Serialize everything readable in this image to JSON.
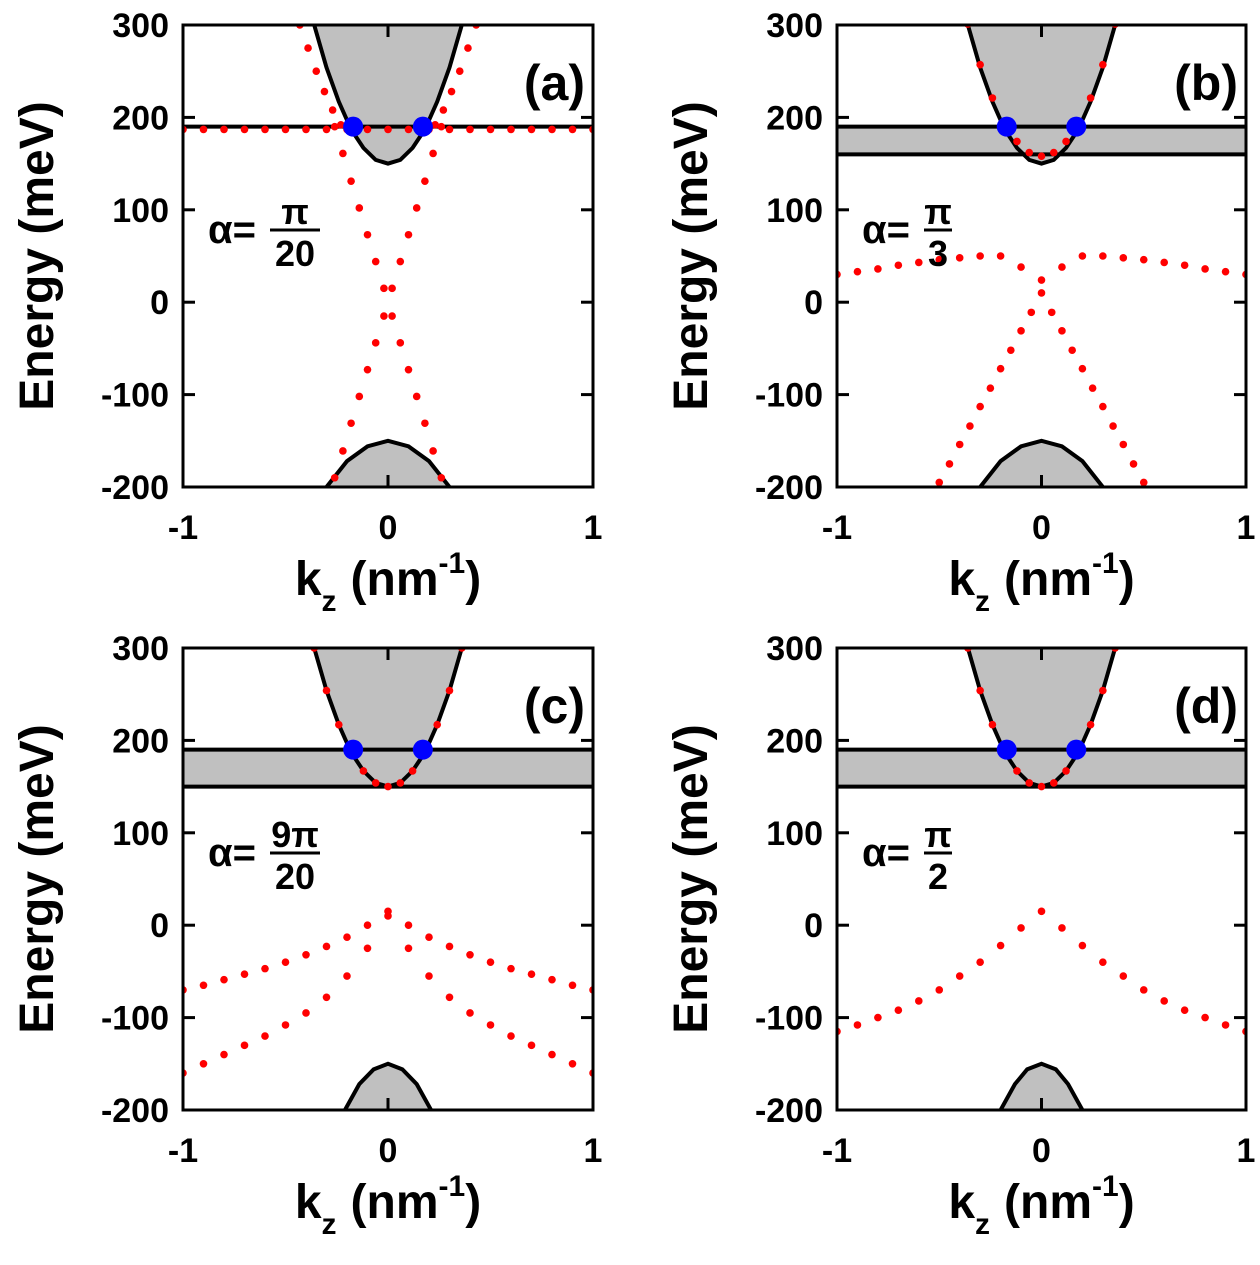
{
  "chart_data": [
    {
      "type": "line",
      "title": "(a)",
      "ylabel": "Energy (meV)",
      "xlabel": {
        "base": "k",
        "sub": "z",
        "unit": "(nm",
        "sup": "-1",
        "close": ")"
      },
      "annotation": {
        "prefix": "α=",
        "numerator": "π",
        "denominator": "20"
      },
      "xlim": [
        -1,
        1
      ],
      "ylim": [
        -200,
        300
      ],
      "xticks": [
        -1,
        0,
        1
      ],
      "yticks": [
        -200,
        -100,
        0,
        100,
        200,
        300
      ],
      "conduction_band": {
        "x": [
          -0.36,
          -0.3,
          -0.24,
          -0.18,
          -0.12,
          -0.06,
          0,
          0.06,
          0.12,
          0.18,
          0.24,
          0.3,
          0.36
        ],
        "values": [
          300,
          254,
          217,
          187,
          167,
          154,
          150,
          154,
          167,
          187,
          217,
          254,
          300
        ]
      },
      "valence_band": {
        "x": [
          -0.3,
          -0.2,
          -0.1,
          0,
          0.1,
          0.2,
          0.3
        ],
        "values": [
          -200,
          -172,
          -156,
          -150,
          -156,
          -172,
          -200
        ]
      },
      "lines": [
        190
      ],
      "crossings": {
        "color": "#0000ff",
        "x": [
          -0.17,
          0.17
        ],
        "values": [
          190,
          190
        ]
      },
      "series": [
        {
          "color": "#ff0000",
          "x": [
            -1,
            -0.9,
            -0.8,
            -0.7,
            -0.6,
            -0.5,
            -0.4,
            -0.3,
            -0.2,
            -0.1,
            0,
            0.1,
            0.2,
            0.3,
            0.4,
            0.5,
            0.6,
            0.7,
            0.8,
            0.9,
            1
          ],
          "values": [
            187,
            187,
            187,
            187,
            187,
            187,
            187,
            187,
            187,
            187,
            187,
            187,
            187,
            187,
            187,
            187,
            187,
            187,
            187,
            187,
            187
          ]
        },
        {
          "color": "#ff0000",
          "x": [
            -0.43,
            -0.39,
            -0.35,
            -0.31,
            -0.27,
            -0.23
          ],
          "values": [
            300,
            275,
            250,
            228,
            208,
            192
          ]
        },
        {
          "color": "#ff0000",
          "x": [
            0.23,
            0.27,
            0.31,
            0.35,
            0.39,
            0.43
          ],
          "values": [
            192,
            208,
            228,
            250,
            275,
            300
          ]
        },
        {
          "color": "#ff0000",
          "x": [
            -0.26,
            -0.22,
            -0.18,
            -0.14,
            -0.1,
            -0.06,
            -0.02,
            0.02,
            0.06,
            0.1,
            0.14,
            0.18,
            0.22,
            0.26
          ],
          "values": [
            190,
            161,
            131,
            102,
            73,
            44,
            15,
            -15,
            -44,
            -73,
            -102,
            -131,
            -161,
            -190
          ]
        },
        {
          "color": "#ff0000",
          "x": [
            -0.26,
            -0.22,
            -0.18,
            -0.14,
            -0.1,
            -0.06,
            -0.02,
            0.02,
            0.06,
            0.1,
            0.14,
            0.18,
            0.22,
            0.26
          ],
          "values": [
            -190,
            -161,
            -131,
            -102,
            -73,
            -44,
            -15,
            15,
            44,
            73,
            102,
            131,
            161,
            190
          ]
        }
      ]
    },
    {
      "type": "line",
      "title": "(b)",
      "ylabel": "Energy (meV)",
      "xlabel": {
        "base": "k",
        "sub": "z",
        "unit": "(nm",
        "sup": "-1",
        "close": ")"
      },
      "annotation": {
        "prefix": "α=",
        "numerator": "π",
        "denominator": "3"
      },
      "xlim": [
        -1,
        1
      ],
      "ylim": [
        -200,
        300
      ],
      "xticks": [
        -1,
        0,
        1
      ],
      "yticks": [
        -200,
        -100,
        0,
        100,
        200,
        300
      ],
      "conduction_band": {
        "x": [
          -0.36,
          -0.3,
          -0.24,
          -0.18,
          -0.12,
          -0.06,
          0,
          0.06,
          0.12,
          0.18,
          0.24,
          0.3,
          0.36
        ],
        "values": [
          300,
          254,
          217,
          187,
          167,
          154,
          150,
          154,
          167,
          187,
          217,
          254,
          300
        ]
      },
      "valence_band": {
        "x": [
          -0.3,
          -0.2,
          -0.1,
          0,
          0.1,
          0.2,
          0.3
        ],
        "values": [
          -200,
          -172,
          -156,
          -150,
          -156,
          -172,
          -200
        ]
      },
      "lines": [
        160,
        190
      ],
      "shaded_band": [
        160,
        190
      ],
      "crossings": {
        "color": "#0000ff",
        "x": [
          -0.17,
          0.17
        ],
        "values": [
          190,
          190
        ]
      },
      "series": [
        {
          "color": "#ff0000",
          "x": [
            -0.36,
            -0.3,
            -0.24,
            -0.18,
            -0.12,
            -0.06,
            0,
            0.06,
            0.12,
            0.18,
            0.24,
            0.3,
            0.36
          ],
          "values": [
            301,
            257,
            221,
            194,
            174,
            162,
            158,
            162,
            174,
            194,
            221,
            257,
            301
          ]
        },
        {
          "color": "#ff0000",
          "x": [
            -1,
            -0.9,
            -0.8,
            -0.7,
            -0.6,
            -0.5,
            -0.4,
            -0.3,
            -0.2,
            -0.1,
            0,
            0.1,
            0.2,
            0.3,
            0.4,
            0.5,
            0.6,
            0.7,
            0.8,
            0.9,
            1
          ],
          "values": [
            30,
            33,
            36,
            40,
            43,
            46,
            48,
            50,
            50,
            38,
            24,
            38,
            50,
            50,
            48,
            46,
            43,
            40,
            36,
            33,
            30
          ]
        },
        {
          "color": "#ff0000",
          "x": [
            -0.5,
            -0.45,
            -0.4,
            -0.35,
            -0.3,
            -0.25,
            -0.2,
            -0.15,
            -0.1,
            -0.05,
            0,
            0.05,
            0.1,
            0.15,
            0.2,
            0.25,
            0.3,
            0.35,
            0.4,
            0.45,
            0.5
          ],
          "values": [
            -195,
            -175,
            -154,
            -134,
            -113,
            -93,
            -72,
            -52,
            -31,
            -11,
            10,
            -11,
            -31,
            -52,
            -72,
            -93,
            -113,
            -134,
            -154,
            -175,
            -195
          ]
        }
      ]
    },
    {
      "type": "line",
      "title": "(c)",
      "ylabel": "Energy (meV)",
      "xlabel": {
        "base": "k",
        "sub": "z",
        "unit": "(nm",
        "sup": "-1",
        "close": ")"
      },
      "annotation": {
        "prefix": "α=",
        "numerator": "9π",
        "denominator": "20"
      },
      "xlim": [
        -1,
        1
      ],
      "ylim": [
        -200,
        300
      ],
      "xticks": [
        -1,
        0,
        1
      ],
      "yticks": [
        -200,
        -100,
        0,
        100,
        200,
        300
      ],
      "conduction_band": {
        "x": [
          -0.36,
          -0.3,
          -0.24,
          -0.18,
          -0.12,
          -0.06,
          0,
          0.06,
          0.12,
          0.18,
          0.24,
          0.3,
          0.36
        ],
        "values": [
          300,
          254,
          217,
          187,
          167,
          154,
          150,
          154,
          167,
          187,
          217,
          254,
          300
        ]
      },
      "valence_band": {
        "x": [
          -0.21,
          -0.14,
          -0.07,
          0,
          0.07,
          0.14,
          0.21
        ],
        "values": [
          -200,
          -172,
          -156,
          -150,
          -156,
          -172,
          -200
        ]
      },
      "lines": [
        150,
        190
      ],
      "shaded_band": [
        150,
        190
      ],
      "crossings": {
        "color": "#0000ff",
        "x": [
          -0.17,
          0.17
        ],
        "values": [
          190,
          190
        ]
      },
      "series": [
        {
          "color": "#ff0000",
          "x": [
            -0.36,
            -0.3,
            -0.24,
            -0.18,
            -0.12,
            -0.06,
            0,
            0.06,
            0.12,
            0.18,
            0.24,
            0.3,
            0.36
          ],
          "values": [
            300,
            254,
            217,
            187,
            167,
            154,
            150,
            154,
            167,
            187,
            217,
            254,
            300
          ]
        },
        {
          "color": "#ff0000",
          "x": [
            -1,
            -0.9,
            -0.8,
            -0.7,
            -0.6,
            -0.5,
            -0.4,
            -0.3,
            -0.2,
            -0.1,
            0,
            0.1,
            0.2,
            0.3,
            0.4,
            0.5,
            0.6,
            0.7,
            0.8,
            0.9,
            1
          ],
          "values": [
            -70,
            -65,
            -59,
            -53,
            -47,
            -40,
            -32,
            -23,
            -13,
            0,
            15,
            0,
            -13,
            -23,
            -32,
            -40,
            -47,
            -53,
            -59,
            -65,
            -70
          ]
        },
        {
          "color": "#ff0000",
          "x": [
            -1,
            -0.9,
            -0.8,
            -0.7,
            -0.6,
            -0.5,
            -0.4,
            -0.3,
            -0.2,
            -0.1,
            0,
            0.1,
            0.2,
            0.3,
            0.4,
            0.5,
            0.6,
            0.7,
            0.8,
            0.9,
            1
          ],
          "values": [
            -160,
            -150,
            -140,
            -130,
            -120,
            -108,
            -95,
            -78,
            -55,
            -25,
            10,
            -25,
            -55,
            -78,
            -95,
            -108,
            -120,
            -130,
            -140,
            -150,
            -160
          ]
        }
      ]
    },
    {
      "type": "line",
      "title": "(d)",
      "ylabel": "Energy (meV)",
      "xlabel": {
        "base": "k",
        "sub": "z",
        "unit": "(nm",
        "sup": "-1",
        "close": ")"
      },
      "annotation": {
        "prefix": "α=",
        "numerator": "π",
        "denominator": "2"
      },
      "xlim": [
        -1,
        1
      ],
      "ylim": [
        -200,
        300
      ],
      "xticks": [
        -1,
        0,
        1
      ],
      "yticks": [
        -200,
        -100,
        0,
        100,
        200,
        300
      ],
      "conduction_band": {
        "x": [
          -0.36,
          -0.3,
          -0.24,
          -0.18,
          -0.12,
          -0.06,
          0,
          0.06,
          0.12,
          0.18,
          0.24,
          0.3,
          0.36
        ],
        "values": [
          300,
          254,
          217,
          187,
          167,
          154,
          150,
          154,
          167,
          187,
          217,
          254,
          300
        ]
      },
      "valence_band": {
        "x": [
          -0.2,
          -0.13,
          -0.07,
          0,
          0.07,
          0.13,
          0.2
        ],
        "values": [
          -200,
          -172,
          -156,
          -150,
          -156,
          -172,
          -200
        ]
      },
      "lines": [
        150,
        190
      ],
      "shaded_band": [
        150,
        190
      ],
      "crossings": {
        "color": "#0000ff",
        "x": [
          -0.17,
          0.17
        ],
        "values": [
          190,
          190
        ]
      },
      "series": [
        {
          "color": "#ff0000",
          "x": [
            -0.36,
            -0.3,
            -0.24,
            -0.18,
            -0.12,
            -0.06,
            0,
            0.06,
            0.12,
            0.18,
            0.24,
            0.3,
            0.36
          ],
          "values": [
            300,
            254,
            217,
            187,
            167,
            154,
            150,
            154,
            167,
            187,
            217,
            254,
            300
          ]
        },
        {
          "color": "#ff0000",
          "x": [
            -1,
            -0.9,
            -0.8,
            -0.7,
            -0.6,
            -0.5,
            -0.4,
            -0.3,
            -0.2,
            -0.1,
            0,
            0.1,
            0.2,
            0.3,
            0.4,
            0.5,
            0.6,
            0.7,
            0.8,
            0.9,
            1
          ],
          "values": [
            -115,
            -108,
            -100,
            -92,
            -82,
            -70,
            -55,
            -40,
            -22,
            -3,
            15,
            -3,
            -22,
            -40,
            -55,
            -70,
            -82,
            -92,
            -100,
            -108,
            -115
          ]
        }
      ]
    }
  ]
}
